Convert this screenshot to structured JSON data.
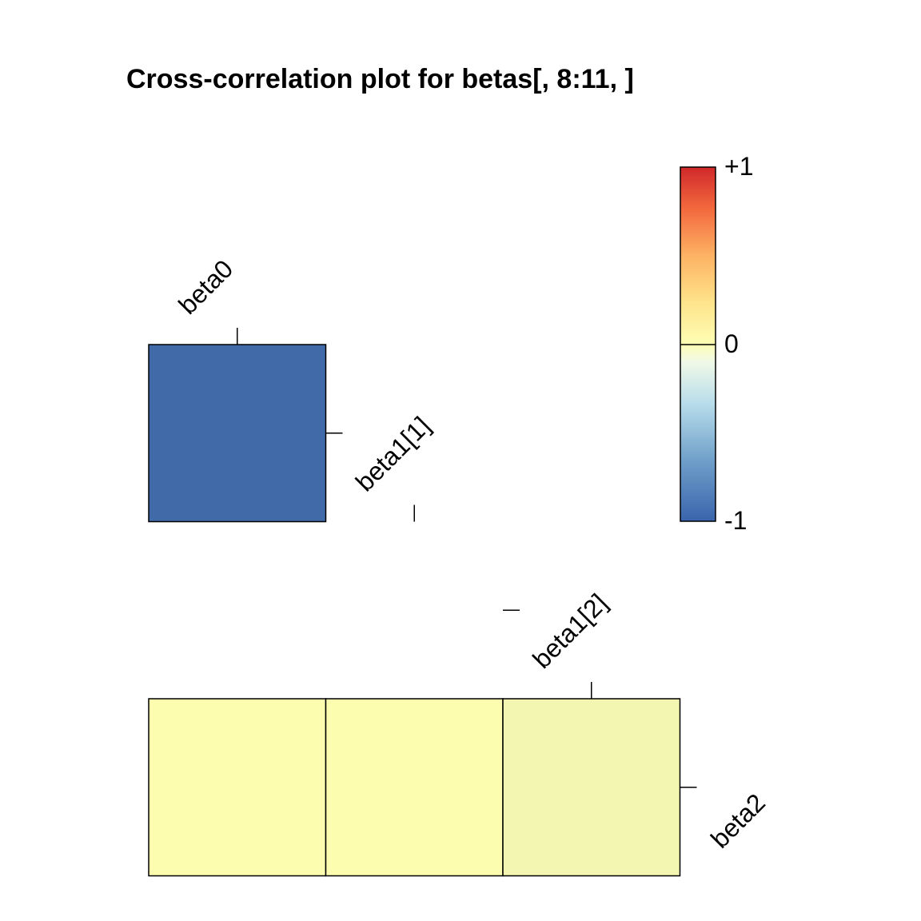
{
  "chart_data": {
    "type": "heatmap",
    "title": "Cross-correlation plot for betas[, 8:11, ]",
    "variables": [
      "beta0",
      "beta1[1]",
      "beta1[2]",
      "beta2"
    ],
    "matrix_layout": "lower-triangle",
    "cells": [
      {
        "row": "beta1[1]",
        "col": "beta0",
        "value": -0.98
      },
      {
        "row": "beta2",
        "col": "beta0",
        "value": 0.0
      },
      {
        "row": "beta2",
        "col": "beta1[1]",
        "value": 0.0
      },
      {
        "row": "beta2",
        "col": "beta1[2]",
        "value": -0.05
      }
    ],
    "color_scale": {
      "range": [
        -1,
        1
      ],
      "tick_labels": [
        "+1",
        "0",
        "-1"
      ],
      "tick_values": [
        1,
        0,
        -1
      ],
      "colors": {
        "low": "#3d67a8",
        "mid": "#fdfdb0",
        "high": "#d62b24"
      },
      "placement": "top-right"
    }
  }
}
